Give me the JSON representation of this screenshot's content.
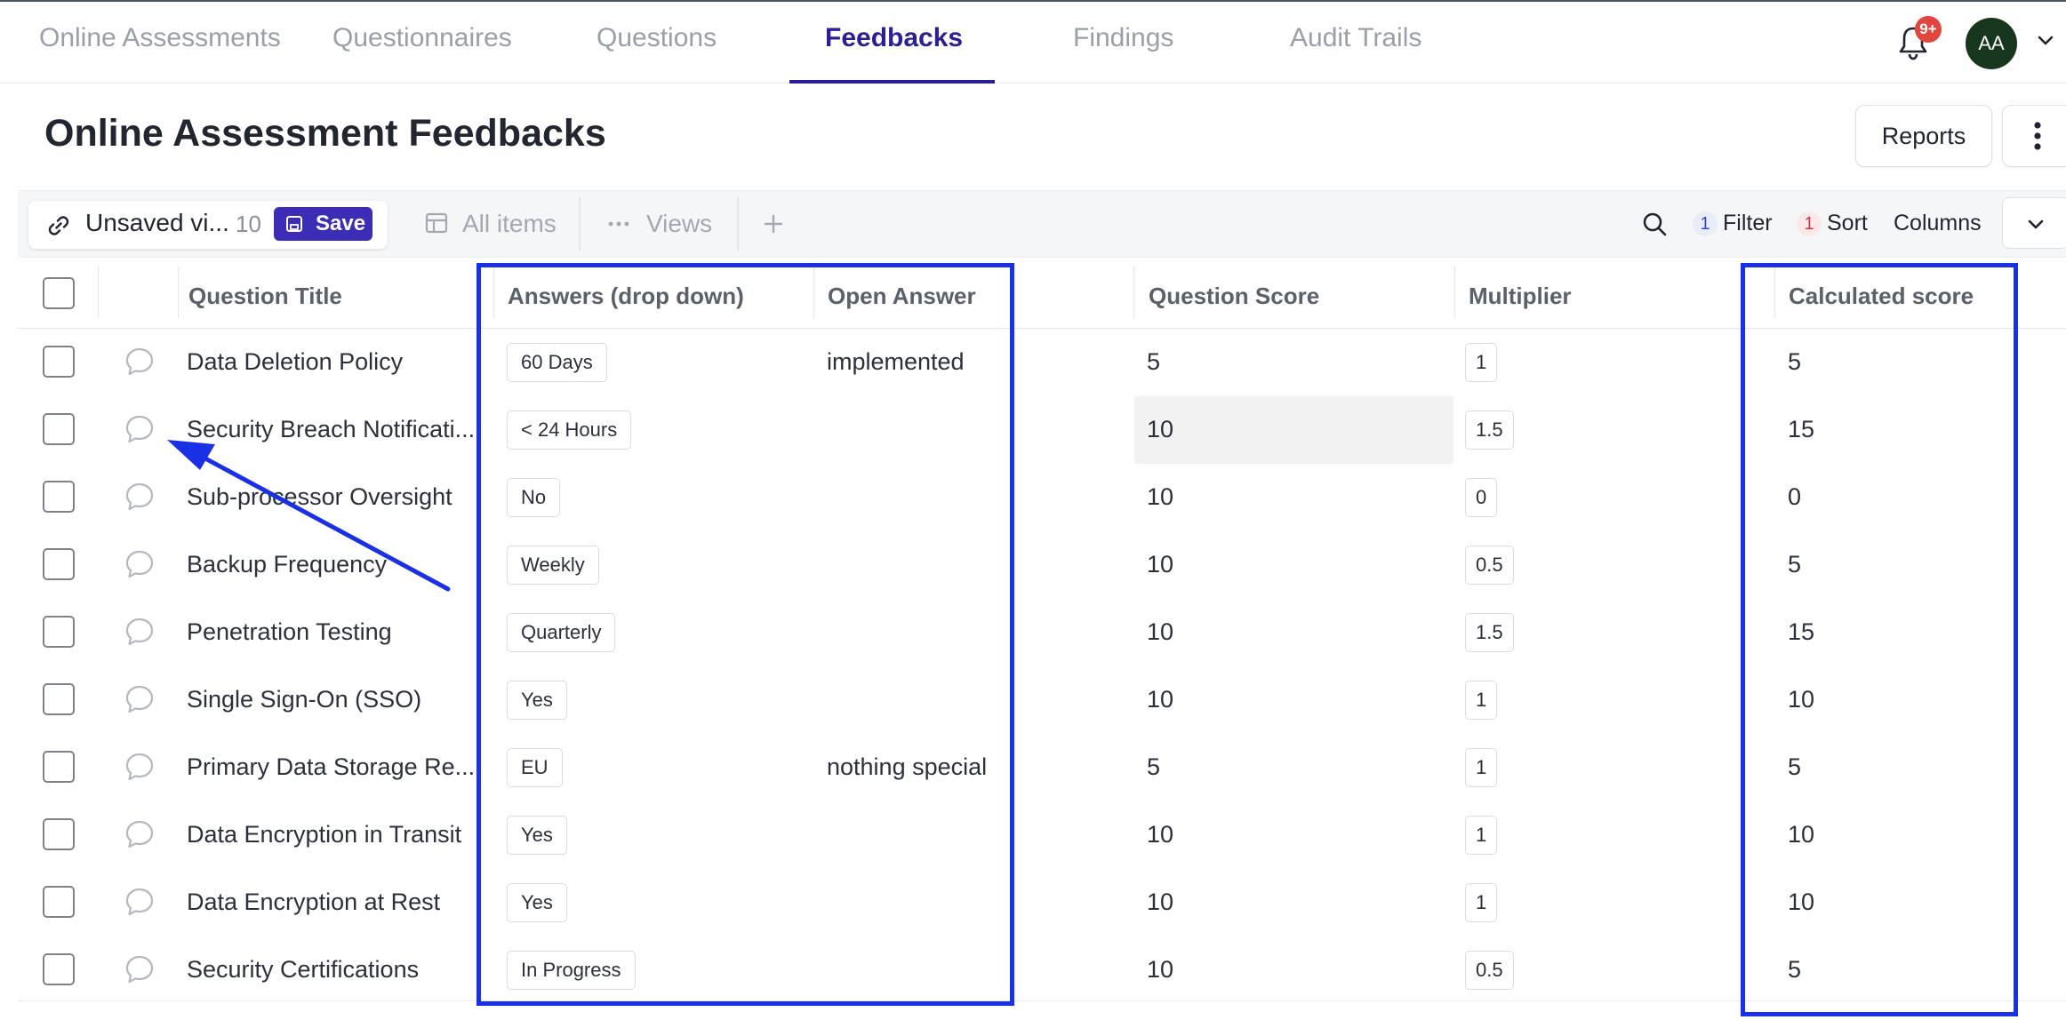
{
  "nav": {
    "tabs": [
      {
        "label": "Online Assessments"
      },
      {
        "label": "Questionnaires"
      },
      {
        "label": "Questions"
      },
      {
        "label": "Feedbacks"
      },
      {
        "label": "Findings"
      },
      {
        "label": "Audit Trails"
      }
    ],
    "active_tab": "Feedbacks",
    "notifications_badge": "9+",
    "avatar_initials": "AA"
  },
  "page": {
    "title": "Online Assessment Feedbacks",
    "reports_label": "Reports"
  },
  "toolbar": {
    "view_name": "Unsaved vi...",
    "view_count": "10",
    "save_label": "Save",
    "all_items_label": "All items",
    "views_label": "Views",
    "filter_count": "1",
    "filter_label": "Filter",
    "sort_count": "1",
    "sort_label": "Sort",
    "columns_label": "Columns"
  },
  "table": {
    "headers": {
      "title": "Question Title",
      "answers": "Answers (drop down)",
      "open_answer": "Open Answer",
      "question_score": "Question Score",
      "multiplier": "Multiplier",
      "calculated_score": "Calculated score"
    },
    "rows": [
      {
        "title": "Data Deletion Policy",
        "answer": "60 Days",
        "open_answer": "implemented",
        "score": "5",
        "multiplier": "1",
        "calculated": "5"
      },
      {
        "title": "Security Breach Notificati...",
        "answer": "< 24 Hours",
        "open_answer": "",
        "score": "10",
        "multiplier": "1.5",
        "calculated": "15"
      },
      {
        "title": "Sub-processor Oversight",
        "answer": "No",
        "open_answer": "",
        "score": "10",
        "multiplier": "0",
        "calculated": "0"
      },
      {
        "title": "Backup Frequency",
        "answer": "Weekly",
        "open_answer": "",
        "score": "10",
        "multiplier": "0.5",
        "calculated": "5"
      },
      {
        "title": "Penetration Testing",
        "answer": "Quarterly",
        "open_answer": "",
        "score": "10",
        "multiplier": "1.5",
        "calculated": "15"
      },
      {
        "title": "Single Sign-On (SSO)",
        "answer": "Yes",
        "open_answer": "",
        "score": "10",
        "multiplier": "1",
        "calculated": "10"
      },
      {
        "title": "Primary Data Storage Re...",
        "answer": "EU",
        "open_answer": "nothing special",
        "score": "5",
        "multiplier": "1",
        "calculated": "5"
      },
      {
        "title": "Data Encryption in Transit",
        "answer": "Yes",
        "open_answer": "",
        "score": "10",
        "multiplier": "1",
        "calculated": "10"
      },
      {
        "title": "Data Encryption at Rest",
        "answer": "Yes",
        "open_answer": "",
        "score": "10",
        "multiplier": "1",
        "calculated": "10"
      },
      {
        "title": "Security Certifications",
        "answer": "In Progress",
        "open_answer": "",
        "score": "10",
        "multiplier": "0.5",
        "calculated": "5"
      }
    ]
  },
  "colors": {
    "accent": "#2b1f97",
    "save_button": "#3c2db7",
    "annotation": "#1a30e6",
    "badge": "#e0463e",
    "avatar": "#17361e"
  },
  "icons": [
    "bell-icon",
    "chevron-down-icon",
    "link-icon",
    "save-icon",
    "table-icon",
    "dots-horizontal-icon",
    "plus-icon",
    "search-icon",
    "dots-vertical-icon",
    "comment-icon",
    "annotation-arrow"
  ]
}
